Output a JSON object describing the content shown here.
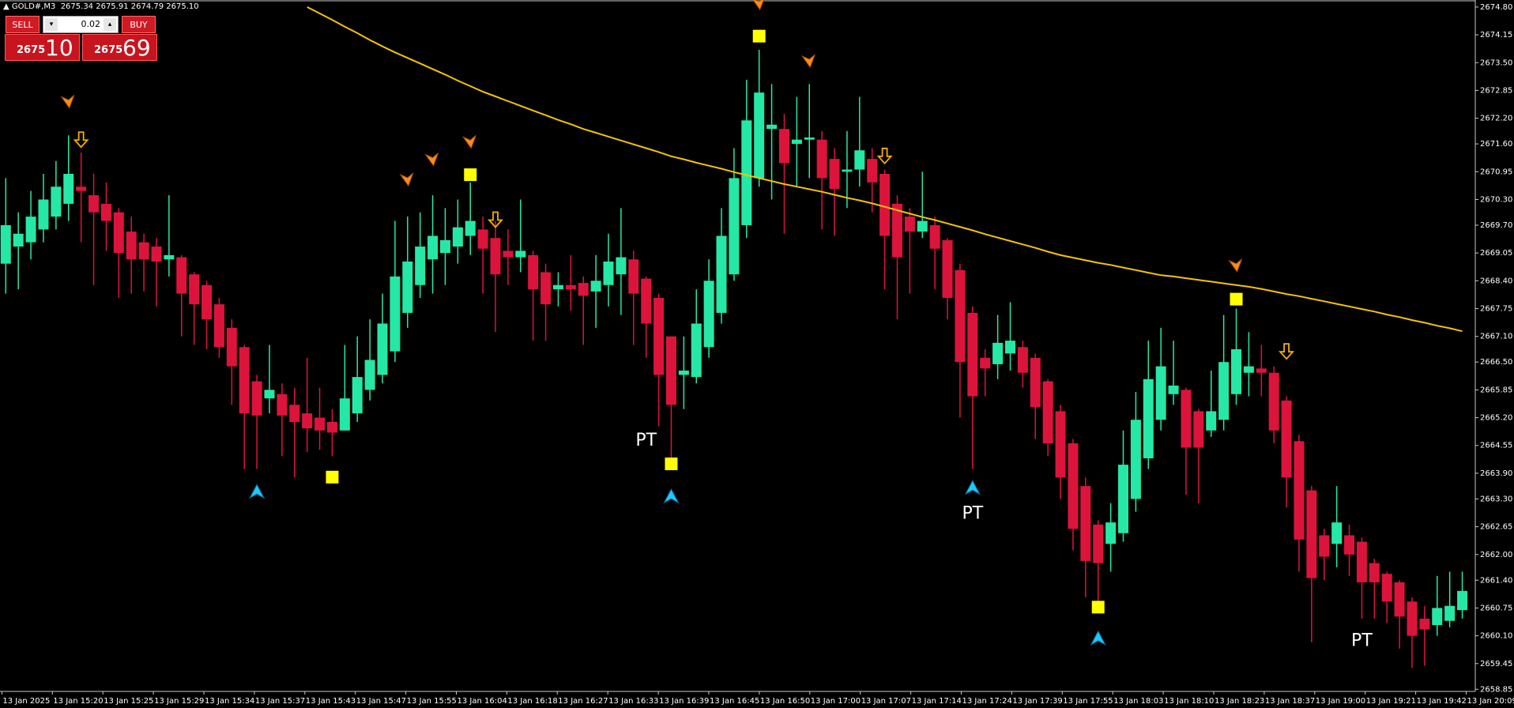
{
  "chart_data": {
    "type": "candlestick",
    "panel": {
      "symbol": "GOLD#,M3",
      "quote": "2675.34 2675.91 2674.79 2675.10",
      "sell": "SELL",
      "buy": "BUY",
      "volume": "0.02",
      "sell_price_small": "2675",
      "sell_price_big": "10",
      "buy_price_small": "2675",
      "buy_price_big": "69"
    },
    "ylim": [
      2658.8,
      2674.92
    ],
    "yticks": [
      {
        "value": 2674.8,
        "label": "2674.80"
      },
      {
        "value": 2674.15,
        "label": "2674.15"
      },
      {
        "value": 2673.5,
        "label": "2673.50"
      },
      {
        "value": 2672.85,
        "label": "2672.85"
      },
      {
        "value": 2672.2,
        "label": "2672.20"
      },
      {
        "value": 2671.6,
        "label": "2671.60"
      },
      {
        "value": 2670.95,
        "label": "2670.95"
      },
      {
        "value": 2670.3,
        "label": "2670.30"
      },
      {
        "value": 2669.7,
        "label": "2669.70"
      },
      {
        "value": 2669.05,
        "label": "2669.05"
      },
      {
        "value": 2668.4,
        "label": "2668.40"
      },
      {
        "value": 2667.75,
        "label": "2667.75"
      },
      {
        "value": 2667.1,
        "label": "2667.10"
      },
      {
        "value": 2666.5,
        "label": "2666.50"
      },
      {
        "value": 2665.85,
        "label": "2665.85"
      },
      {
        "value": 2665.2,
        "label": "2665.20"
      },
      {
        "value": 2664.55,
        "label": "2664.55"
      },
      {
        "value": 2663.9,
        "label": "2663.90"
      },
      {
        "value": 2663.3,
        "label": "2663.30"
      },
      {
        "value": 2662.65,
        "label": "2662.65"
      },
      {
        "value": 2662.0,
        "label": "2662.00"
      },
      {
        "value": 2661.4,
        "label": "2661.40"
      },
      {
        "value": 2660.75,
        "label": "2660.75"
      },
      {
        "value": 2660.1,
        "label": "2660.10"
      },
      {
        "value": 2659.45,
        "label": "2659.45"
      },
      {
        "value": 2658.85,
        "label": "2658.85"
      }
    ],
    "xlabels": [
      "13 Jan 2025",
      "13 Jan 15:20",
      "13 Jan 15:25",
      "13 Jan 15:29",
      "13 Jan 15:34",
      "13 Jan 15:37",
      "13 Jan 15:43",
      "13 Jan 15:47",
      "13 Jan 15:55",
      "13 Jan 16:04",
      "13 Jan 16:18",
      "13 Jan 16:27",
      "13 Jan 16:33",
      "13 Jan 16:39",
      "13 Jan 16:45",
      "13 Jan 16:50",
      "13 Jan 17:00",
      "13 Jan 17:07",
      "13 Jan 17:14",
      "13 Jan 17:24",
      "13 Jan 17:39",
      "13 Jan 17:55",
      "13 Jan 18:03",
      "13 Jan 18:10",
      "13 Jan 18:23",
      "13 Jan 18:37",
      "13 Jan 19:00",
      "13 Jan 19:21",
      "13 Jan 19:42",
      "13 Jan 20:09"
    ],
    "up_color": "#26e8a6",
    "down_color": "#dc143c",
    "ma_color": "#f5c400",
    "candles": [
      [
        2668.8,
        2670.8,
        2668.1,
        2669.7
      ],
      [
        2669.2,
        2670.0,
        2668.2,
        2669.5
      ],
      [
        2669.3,
        2670.5,
        2668.9,
        2669.9
      ],
      [
        2669.6,
        2670.9,
        2669.3,
        2670.3
      ],
      [
        2669.9,
        2671.2,
        2669.6,
        2670.6
      ],
      [
        2670.2,
        2671.8,
        2669.8,
        2670.9
      ],
      [
        2670.6,
        2671.4,
        2669.3,
        2670.5
      ],
      [
        2670.4,
        2670.9,
        2668.3,
        2670.0
      ],
      [
        2670.2,
        2670.7,
        2669.1,
        2669.8
      ],
      [
        2670.0,
        2670.1,
        2668.0,
        2669.05
      ],
      [
        2669.55,
        2669.9,
        2668.1,
        2668.9
      ],
      [
        2669.3,
        2669.5,
        2668.15,
        2668.9
      ],
      [
        2669.2,
        2669.4,
        2667.8,
        2668.85
      ],
      [
        2668.9,
        2670.4,
        2668.5,
        2669.0
      ],
      [
        2668.95,
        2669.0,
        2667.1,
        2668.1
      ],
      [
        2668.55,
        2668.6,
        2666.9,
        2667.85
      ],
      [
        2668.3,
        2668.4,
        2666.8,
        2667.5
      ],
      [
        2667.85,
        2668.0,
        2666.6,
        2666.85
      ],
      [
        2667.3,
        2667.5,
        2665.5,
        2666.4
      ],
      [
        2666.85,
        2666.9,
        2664.0,
        2665.3
      ],
      [
        2666.05,
        2666.2,
        2664.0,
        2665.25
      ],
      [
        2665.65,
        2666.9,
        2665.3,
        2665.85
      ],
      [
        2665.75,
        2666.0,
        2664.3,
        2665.25
      ],
      [
        2665.5,
        2665.9,
        2663.8,
        2665.1
      ],
      [
        2665.3,
        2666.6,
        2664.4,
        2664.95
      ],
      [
        2665.2,
        2665.9,
        2664.45,
        2664.9
      ],
      [
        2665.1,
        2665.4,
        2664.3,
        2664.85
      ],
      [
        2664.9,
        2666.9,
        2664.9,
        2665.65
      ],
      [
        2665.3,
        2667.1,
        2665.1,
        2666.15
      ],
      [
        2665.85,
        2667.5,
        2665.6,
        2666.55
      ],
      [
        2666.2,
        2668.1,
        2666.0,
        2667.4
      ],
      [
        2666.75,
        2669.8,
        2666.5,
        2668.5
      ],
      [
        2667.65,
        2669.9,
        2667.3,
        2668.85
      ],
      [
        2668.3,
        2670.0,
        2668.0,
        2669.2
      ],
      [
        2668.9,
        2670.4,
        2668.1,
        2669.45
      ],
      [
        2669.05,
        2670.1,
        2668.3,
        2669.35
      ],
      [
        2669.2,
        2670.3,
        2668.8,
        2669.65
      ],
      [
        2669.45,
        2670.7,
        2669.0,
        2669.8
      ],
      [
        2669.6,
        2669.9,
        2668.1,
        2669.15
      ],
      [
        2669.4,
        2669.8,
        2667.2,
        2668.55
      ],
      [
        2669.1,
        2669.6,
        2668.3,
        2668.95
      ],
      [
        2668.95,
        2670.3,
        2668.6,
        2669.1
      ],
      [
        2669.0,
        2669.1,
        2667.0,
        2668.2
      ],
      [
        2668.6,
        2668.8,
        2667.0,
        2667.85
      ],
      [
        2668.2,
        2668.6,
        2667.8,
        2668.3
      ],
      [
        2668.3,
        2669.0,
        2667.7,
        2668.2
      ],
      [
        2668.35,
        2668.5,
        2666.9,
        2668.05
      ],
      [
        2668.15,
        2669.0,
        2667.3,
        2668.4
      ],
      [
        2668.3,
        2669.5,
        2667.8,
        2668.85
      ],
      [
        2668.55,
        2670.1,
        2667.6,
        2668.95
      ],
      [
        2668.9,
        2669.1,
        2666.9,
        2668.1
      ],
      [
        2668.45,
        2668.5,
        2666.6,
        2667.4
      ],
      [
        2668.0,
        2668.1,
        2665.0,
        2666.2
      ],
      [
        2667.1,
        2667.1,
        2664.2,
        2665.5
      ],
      [
        2666.2,
        2667.1,
        2665.4,
        2666.3
      ],
      [
        2666.15,
        2668.2,
        2666.0,
        2667.4
      ],
      [
        2666.85,
        2668.9,
        2666.6,
        2668.4
      ],
      [
        2667.65,
        2670.1,
        2667.4,
        2669.45
      ],
      [
        2668.55,
        2671.5,
        2668.4,
        2670.8
      ],
      [
        2669.7,
        2673.1,
        2669.4,
        2672.15
      ],
      [
        2670.8,
        2673.8,
        2670.6,
        2672.8
      ],
      [
        2671.95,
        2673.0,
        2670.3,
        2672.05
      ],
      [
        2671.95,
        2672.3,
        2669.5,
        2671.15
      ],
      [
        2671.6,
        2672.7,
        2670.6,
        2671.7
      ],
      [
        2671.7,
        2673.0,
        2670.8,
        2671.75
      ],
      [
        2671.7,
        2671.9,
        2669.6,
        2670.8
      ],
      [
        2671.25,
        2671.5,
        2669.45,
        2670.55
      ],
      [
        2670.95,
        2671.9,
        2670.1,
        2671.0
      ],
      [
        2671.0,
        2672.7,
        2670.6,
        2671.45
      ],
      [
        2671.25,
        2671.5,
        2670.0,
        2670.7
      ],
      [
        2670.9,
        2671.0,
        2668.2,
        2669.45
      ],
      [
        2670.2,
        2670.4,
        2667.5,
        2668.95
      ],
      [
        2669.9,
        2670.1,
        2668.1,
        2669.55
      ],
      [
        2669.55,
        2670.95,
        2669.4,
        2669.8
      ],
      [
        2669.7,
        2669.9,
        2668.2,
        2669.15
      ],
      [
        2669.35,
        2669.4,
        2667.5,
        2668.0
      ],
      [
        2668.65,
        2668.8,
        2665.2,
        2666.5
      ],
      [
        2667.65,
        2667.8,
        2664.0,
        2665.7
      ],
      [
        2666.6,
        2666.8,
        2665.7,
        2666.35
      ],
      [
        2666.45,
        2667.6,
        2666.1,
        2666.95
      ],
      [
        2666.7,
        2667.9,
        2666.3,
        2667.0
      ],
      [
        2666.85,
        2667.0,
        2665.9,
        2666.25
      ],
      [
        2666.6,
        2666.7,
        2664.7,
        2665.45
      ],
      [
        2666.05,
        2666.1,
        2664.3,
        2664.6
      ],
      [
        2665.35,
        2665.5,
        2663.3,
        2663.8
      ],
      [
        2664.6,
        2664.7,
        2662.1,
        2662.6
      ],
      [
        2663.6,
        2663.8,
        2661.0,
        2661.85
      ],
      [
        2662.7,
        2662.8,
        2660.9,
        2661.8
      ],
      [
        2662.25,
        2663.2,
        2661.6,
        2662.75
      ],
      [
        2662.5,
        2664.9,
        2662.3,
        2664.1
      ],
      [
        2663.3,
        2665.8,
        2663.0,
        2665.15
      ],
      [
        2664.25,
        2667.0,
        2664.0,
        2666.1
      ],
      [
        2665.15,
        2667.3,
        2664.9,
        2666.4
      ],
      [
        2665.75,
        2667.0,
        2665.5,
        2665.95
      ],
      [
        2665.85,
        2665.9,
        2663.4,
        2664.5
      ],
      [
        2665.35,
        2665.4,
        2663.2,
        2664.5
      ],
      [
        2664.9,
        2666.3,
        2664.75,
        2665.35
      ],
      [
        2665.15,
        2667.6,
        2664.9,
        2666.5
      ],
      [
        2665.75,
        2667.75,
        2665.5,
        2666.8
      ],
      [
        2666.25,
        2667.2,
        2665.7,
        2666.4
      ],
      [
        2666.35,
        2666.9,
        2665.7,
        2666.25
      ],
      [
        2666.25,
        2666.4,
        2664.6,
        2664.9
      ],
      [
        2665.6,
        2665.7,
        2663.1,
        2663.8
      ],
      [
        2664.65,
        2664.8,
        2661.6,
        2662.35
      ],
      [
        2663.5,
        2663.6,
        2659.95,
        2661.45
      ],
      [
        2662.45,
        2662.6,
        2661.4,
        2661.95
      ],
      [
        2662.25,
        2663.6,
        2661.7,
        2662.75
      ],
      [
        2662.45,
        2662.7,
        2661.5,
        2662.0
      ],
      [
        2662.3,
        2662.4,
        2660.5,
        2661.35
      ],
      [
        2661.8,
        2661.9,
        2660.5,
        2661.35
      ],
      [
        2661.55,
        2661.6,
        2660.4,
        2660.9
      ],
      [
        2661.35,
        2661.4,
        2659.8,
        2660.55
      ],
      [
        2660.9,
        2661.0,
        2659.35,
        2660.1
      ],
      [
        2660.5,
        2660.8,
        2659.4,
        2660.25
      ],
      [
        2660.35,
        2661.5,
        2660.1,
        2660.75
      ],
      [
        2660.45,
        2661.6,
        2660.3,
        2660.8
      ],
      [
        2660.7,
        2661.6,
        2660.5,
        2661.15
      ]
    ],
    "ma_values": [
      null,
      null,
      null,
      null,
      null,
      null,
      null,
      null,
      null,
      null,
      null,
      null,
      null,
      null,
      null,
      null,
      null,
      null,
      null,
      null,
      null,
      null,
      null,
      null,
      2674.8,
      2674.65,
      2674.5,
      2674.34,
      2674.19,
      2674.03,
      2673.88,
      2673.74,
      2673.61,
      2673.48,
      2673.35,
      2673.22,
      2673.08,
      2672.95,
      2672.82,
      2672.71,
      2672.6,
      2672.49,
      2672.38,
      2672.27,
      2672.16,
      2672.06,
      2671.95,
      2671.86,
      2671.77,
      2671.68,
      2671.59,
      2671.5,
      2671.41,
      2671.31,
      2671.24,
      2671.16,
      2671.09,
      2671.02,
      2670.94,
      2670.87,
      2670.8,
      2670.73,
      2670.66,
      2670.6,
      2670.54,
      2670.48,
      2670.41,
      2670.34,
      2670.28,
      2670.21,
      2670.13,
      2670.05,
      2669.97,
      2669.89,
      2669.82,
      2669.74,
      2669.66,
      2669.58,
      2669.49,
      2669.41,
      2669.33,
      2669.25,
      2669.17,
      2669.08,
      2669.0,
      2668.94,
      2668.88,
      2668.82,
      2668.77,
      2668.71,
      2668.65,
      2668.59,
      2668.53,
      2668.5,
      2668.46,
      2668.42,
      2668.38,
      2668.34,
      2668.3,
      2668.26,
      2668.21,
      2668.15,
      2668.09,
      2668.04,
      2667.98,
      2667.92,
      2667.86,
      2667.8,
      2667.74,
      2667.68,
      2667.61,
      2667.55,
      2667.48,
      2667.42,
      2667.35,
      2667.29,
      2667.22
    ],
    "squares": [
      {
        "index": 26,
        "price": 2663.81
      },
      {
        "index": 37,
        "price": 2670.88
      },
      {
        "index": 53,
        "price": 2664.12
      },
      {
        "index": 60,
        "price": 2674.12
      },
      {
        "index": 87,
        "price": 2660.77
      },
      {
        "index": 98,
        "price": 2667.97
      }
    ],
    "down_arrows": [
      {
        "index": 6,
        "price": 2671.69
      },
      {
        "index": 39,
        "price": 2669.82
      },
      {
        "index": 70,
        "price": 2671.31
      },
      {
        "index": 102,
        "price": 2666.74
      }
    ],
    "sell_marks": [
      {
        "index": 5,
        "price": 2672.59
      },
      {
        "index": 32,
        "price": 2670.77
      },
      {
        "index": 34,
        "price": 2671.24
      },
      {
        "index": 37,
        "price": 2671.65
      },
      {
        "index": 60,
        "price": 2674.89
      },
      {
        "index": 64,
        "price": 2673.54
      },
      {
        "index": 98,
        "price": 2668.76
      }
    ],
    "buy_marks": [
      {
        "index": 20,
        "price": 2663.47
      },
      {
        "index": 53,
        "price": 2663.36
      },
      {
        "index": 77,
        "price": 2663.56
      },
      {
        "index": 87,
        "price": 2660.04
      }
    ],
    "pt_labels": [
      {
        "index": 51,
        "price": 2664.66,
        "text": "PT"
      },
      {
        "index": 77,
        "price": 2662.95,
        "text": "PT"
      },
      {
        "index": 108,
        "price": 2659.97,
        "text": "PT"
      }
    ]
  }
}
